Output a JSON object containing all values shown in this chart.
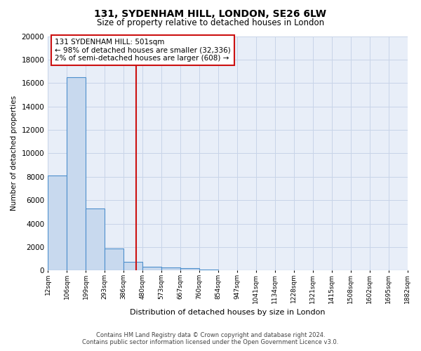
{
  "title": "131, SYDENHAM HILL, LONDON, SE26 6LW",
  "subtitle": "Size of property relative to detached houses in London",
  "xlabel": "Distribution of detached houses by size in London",
  "ylabel": "Number of detached properties",
  "bar_heights": [
    8100,
    16500,
    5300,
    1850,
    750,
    350,
    270,
    180,
    100,
    0,
    0,
    0,
    0,
    0,
    0,
    0,
    0,
    0,
    0
  ],
  "bin_labels": [
    "12sqm",
    "106sqm",
    "199sqm",
    "293sqm",
    "386sqm",
    "480sqm",
    "573sqm",
    "667sqm",
    "760sqm",
    "854sqm",
    "947sqm",
    "1041sqm",
    "1134sqm",
    "1228sqm",
    "1321sqm",
    "1415sqm",
    "1508sqm",
    "1602sqm",
    "1695sqm",
    "1882sqm"
  ],
  "bar_color": "#c8d9ee",
  "bar_edge_color": "#4d8fcc",
  "bg_color": "#e8eef8",
  "grid_color": "#c8d4e8",
  "vline_x": 4.67,
  "vline_color": "#cc1111",
  "annotation_text": "131 SYDENHAM HILL: 501sqm\n← 98% of detached houses are smaller (32,336)\n2% of semi-detached houses are larger (608) →",
  "ylim": [
    0,
    20000
  ],
  "yticks": [
    0,
    2000,
    4000,
    6000,
    8000,
    10000,
    12000,
    14000,
    16000,
    18000,
    20000
  ],
  "footer_line1": "Contains HM Land Registry data © Crown copyright and database right 2024.",
  "footer_line2": "Contains public sector information licensed under the Open Government Licence v3.0."
}
